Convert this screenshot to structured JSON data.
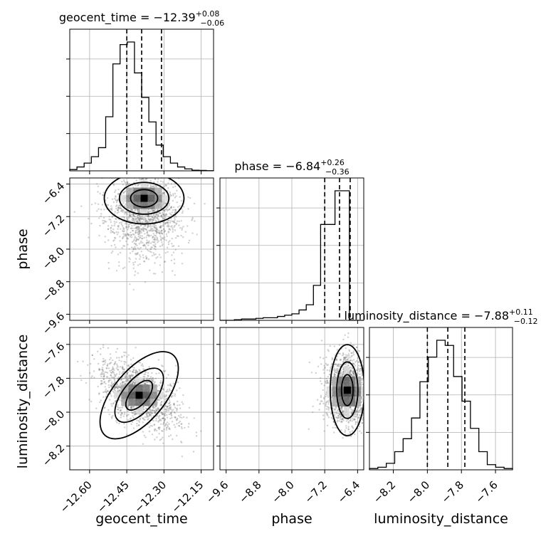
{
  "chart_data": [
    {
      "type": "histogram",
      "panel": "geocent_time-marginal",
      "title": {
        "param": "geocent_time",
        "median": "−12.39",
        "plus": "+0.08",
        "minus": "−0.06"
      },
      "x_range": [
        -12.68,
        -12.1
      ],
      "grid": true,
      "bin_edges_count": 21,
      "heights": [
        0.01,
        0.03,
        0.06,
        0.11,
        0.18,
        0.42,
        0.83,
        0.98,
        1.0,
        0.76,
        0.57,
        0.38,
        0.2,
        0.11,
        0.06,
        0.03,
        0.015,
        0.005,
        0.003,
        0.001
      ],
      "quantiles": [
        -12.45,
        -12.39,
        -12.31
      ]
    },
    {
      "type": "scatter",
      "panel": "phase-vs-geocent_time",
      "x_param": "geocent_time",
      "y_param": "phase",
      "x_range": [
        -12.68,
        -12.1
      ],
      "y_range": [
        -9.75,
        -6.25
      ],
      "ylabel": "phase",
      "y_ticks": [
        "−6.4",
        "−7.2",
        "−8.0",
        "−8.8",
        "−9.6"
      ],
      "density_center": [
        -12.38,
        -6.75
      ],
      "grid": true
    },
    {
      "type": "histogram",
      "panel": "phase-marginal",
      "title": {
        "param": "phase",
        "median": "−6.84",
        "plus": "+0.26",
        "minus": "−0.36"
      },
      "x_range": [
        -9.75,
        -6.25
      ],
      "grid": true,
      "heights": [
        0.0,
        0.0,
        0.005,
        0.01,
        0.01,
        0.015,
        0.02,
        0.02,
        0.03,
        0.04,
        0.05,
        0.08,
        0.12,
        0.27,
        0.74,
        0.74,
        1.0,
        1.0,
        0.0,
        0.0
      ],
      "quantiles": [
        -7.2,
        -6.84,
        -6.58
      ]
    },
    {
      "type": "scatter",
      "panel": "luminosity_distance-vs-geocent_time",
      "x_param": "geocent_time",
      "y_param": "luminosity_distance",
      "x_range": [
        -12.68,
        -12.1
      ],
      "y_range": [
        -8.34,
        -7.5
      ],
      "xlabel": "geocent_time",
      "ylabel": "luminosity_distance",
      "x_ticks": [
        "−12.60",
        "−12.45",
        "−12.30",
        "−12.15"
      ],
      "y_ticks": [
        "−7.6",
        "−7.8",
        "−8.0",
        "−8.2"
      ],
      "density_center": [
        -12.4,
        -7.9
      ],
      "grid": true
    },
    {
      "type": "scatter",
      "panel": "luminosity_distance-vs-phase",
      "x_param": "phase",
      "y_param": "luminosity_distance",
      "x_range": [
        -9.75,
        -6.25
      ],
      "y_range": [
        -8.34,
        -7.5
      ],
      "xlabel": "phase",
      "x_ticks": [
        "−9.6",
        "−8.8",
        "−8.0",
        "−7.2",
        "−6.4"
      ],
      "density_center": [
        -6.65,
        -7.87
      ],
      "grid": true
    },
    {
      "type": "histogram",
      "panel": "luminosity_distance-marginal",
      "title": {
        "param": "luminosity_distance",
        "median": "−7.88",
        "plus": "+0.11",
        "minus": "−0.12"
      },
      "x_range": [
        -8.34,
        -7.5
      ],
      "xlabel": "luminosity_distance",
      "x_ticks": [
        "−8.2",
        "−8.0",
        "−7.8",
        "−7.6"
      ],
      "grid": true,
      "heights": [
        0.01,
        0.02,
        0.05,
        0.14,
        0.24,
        0.4,
        0.68,
        0.87,
        1.0,
        0.96,
        0.72,
        0.53,
        0.32,
        0.14,
        0.04,
        0.02,
        0.01
      ],
      "quantiles": [
        -8.0,
        -7.88,
        -7.78
      ]
    }
  ]
}
